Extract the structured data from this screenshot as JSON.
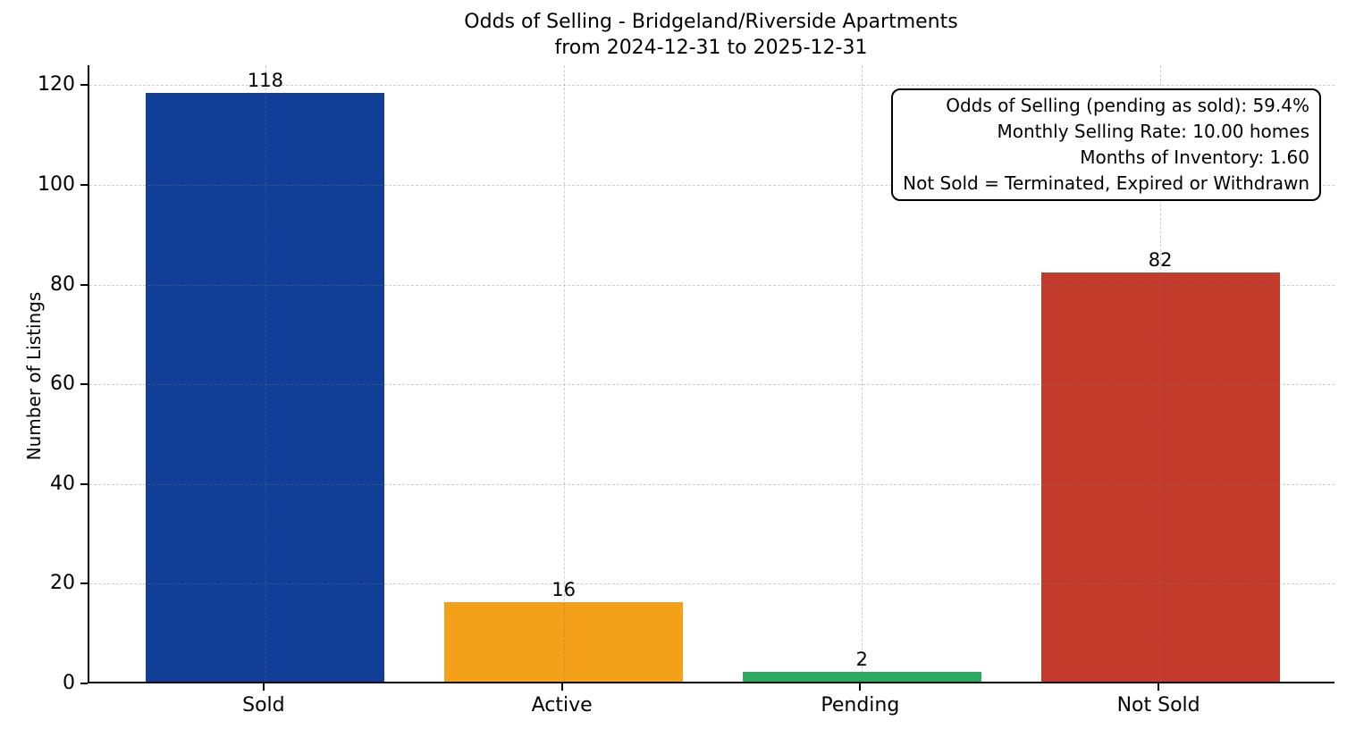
{
  "figure": {
    "background": "#ffffff",
    "text_color": "#000000"
  },
  "chart_data": {
    "type": "bar",
    "title": "Odds of Selling - Bridgeland/Riverside Apartments\nfrom 2024-12-31 to 2025-12-31",
    "categories": [
      "Sold",
      "Active",
      "Pending",
      "Not Sold"
    ],
    "values": [
      118,
      16,
      2,
      82
    ],
    "value_labels": [
      "118",
      "16",
      "2",
      "82"
    ],
    "bar_colors": [
      "#113e97",
      "#f2a119",
      "#2aab5f",
      "#c43a2b"
    ],
    "xlabel": "",
    "ylabel": "Number of Listings",
    "ylim": [
      0,
      124
    ],
    "yticks": [
      0,
      20,
      40,
      60,
      80,
      100,
      120
    ],
    "grid": "dashed horizontal and vertical, above bars",
    "legend": "none",
    "bar_width_fraction": 0.8,
    "annotation": {
      "position": "top-right",
      "lines": [
        "Odds of Selling (pending as sold): 59.4%",
        "Monthly Selling Rate: 10.00 homes",
        "Months of Inventory: 1.60",
        "Not Sold = Terminated, Expired or Withdrawn"
      ]
    }
  }
}
